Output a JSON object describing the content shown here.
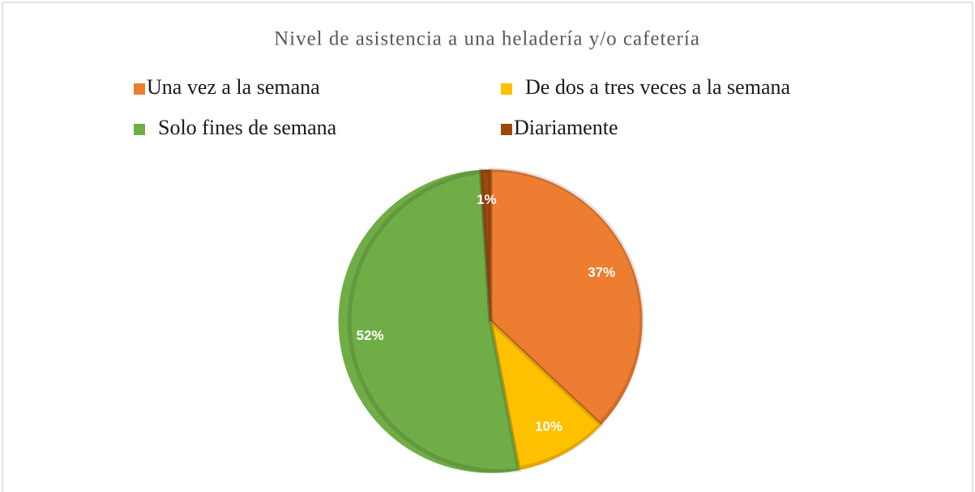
{
  "chart_data": {
    "type": "pie",
    "title": "Nivel de asistencia a una heladería y/o cafetería",
    "categories": [
      "Una vez a la semana",
      "De dos a tres veces a la semana",
      "Solo fines de semana",
      "Diariamente"
    ],
    "values": [
      37,
      10,
      52,
      1
    ],
    "value_labels": [
      "37%",
      "10%",
      "52%",
      "1%"
    ],
    "colors": [
      "#ED7D31",
      "#FFC000",
      "#70AD47",
      "#9E480E"
    ],
    "legend": "top"
  }
}
